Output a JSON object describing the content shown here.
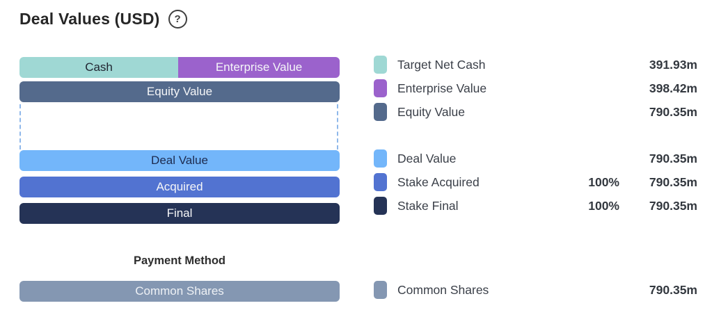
{
  "title": "Deal Values (USD)",
  "help_label": "?",
  "payment_method_label": "Payment Method",
  "colors": {
    "cash": "#9fd8d4",
    "enterprise_value": "#9b62cc",
    "equity_value": "#546a8c",
    "deal_value": "#73b6fa",
    "stake_acquired": "#5273d1",
    "stake_final": "#253356",
    "common_shares": "#8497b2",
    "dashed_outline": "#8fb8ea"
  },
  "chart_data": {
    "type": "bar",
    "title": "Deal Values (USD)",
    "unit": "USD millions",
    "orientation": "horizontal-stacked-bridge",
    "total": 790.35,
    "rows": [
      {
        "name": "enterprise-bridge",
        "segments": [
          {
            "label": "Cash",
            "value": 391.93
          },
          {
            "label": "Enterprise Value",
            "value": 398.42
          }
        ]
      },
      {
        "name": "equity",
        "segments": [
          {
            "label": "Equity Value",
            "value": 790.35
          }
        ]
      },
      {
        "name": "deal",
        "segments": [
          {
            "label": "Deal Value",
            "value": 790.35
          }
        ]
      },
      {
        "name": "acquired",
        "segments": [
          {
            "label": "Acquired",
            "value": 790.35
          }
        ]
      },
      {
        "name": "final",
        "segments": [
          {
            "label": "Final",
            "value": 790.35
          }
        ]
      },
      {
        "name": "payment-method",
        "segments": [
          {
            "label": "Common Shares",
            "value": 790.35
          }
        ]
      }
    ]
  },
  "legend": [
    {
      "label": "Target Net Cash",
      "pct": "",
      "value": "391.93m"
    },
    {
      "label": "Enterprise Value",
      "pct": "",
      "value": "398.42m"
    },
    {
      "label": "Equity Value",
      "pct": "",
      "value": "790.35m"
    },
    {
      "label": "Deal Value",
      "pct": "",
      "value": "790.35m"
    },
    {
      "label": "Stake Acquired",
      "pct": "100%",
      "value": "790.35m"
    },
    {
      "label": "Stake Final",
      "pct": "100%",
      "value": "790.35m"
    },
    {
      "label": "Common Shares",
      "pct": "",
      "value": "790.35m"
    }
  ]
}
